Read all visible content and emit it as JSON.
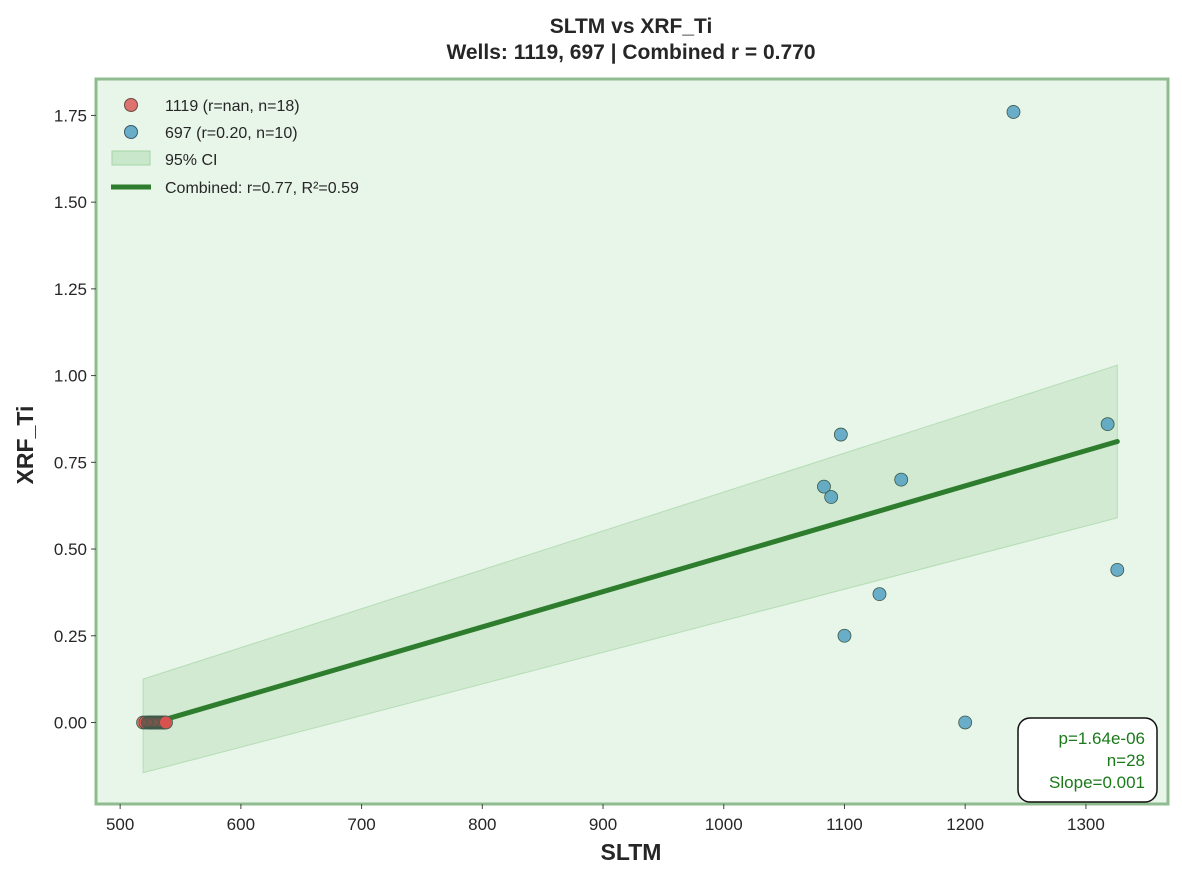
{
  "chart_data": {
    "type": "scatter",
    "title": "SLTM vs XRF_Ti",
    "subtitle": "Wells: 1119, 697 | Combined r = 0.770",
    "xlabel": "SLTM",
    "ylabel": "XRF_Ti",
    "xlim": [
      480,
      1368
    ],
    "ylim": [
      -0.235,
      1.855
    ],
    "xticks": [
      500,
      600,
      700,
      800,
      900,
      1000,
      1100,
      1200,
      1300
    ],
    "yticks": [
      0.0,
      0.25,
      0.5,
      0.75,
      1.0,
      1.25,
      1.5,
      1.75
    ],
    "xtick_labels": [
      "500",
      "600",
      "700",
      "800",
      "900",
      "1000",
      "1100",
      "1200",
      "1300"
    ],
    "ytick_labels": [
      "0.00",
      "0.25",
      "0.50",
      "0.75",
      "1.00",
      "1.25",
      "1.50",
      "1.75"
    ],
    "series": [
      {
        "name": "1119",
        "legend": "1119 (r=nan, n=18)",
        "color": "#d9534f",
        "x": [
          519,
          521,
          523,
          524,
          525,
          526,
          527,
          528,
          529,
          530,
          531,
          532,
          533,
          534,
          535,
          536,
          537,
          538
        ],
        "y": [
          0,
          0,
          0,
          0,
          0,
          0,
          0,
          0,
          0,
          0,
          0,
          0,
          0,
          0,
          0,
          0,
          0,
          0
        ]
      },
      {
        "name": "697",
        "legend": "697 (r=0.20, n=10)",
        "color": "#4a9bbf",
        "x": [
          1240,
          1097,
          1318,
          1083,
          1089,
          1147,
          1326,
          1129,
          1100,
          1200
        ],
        "y": [
          1.76,
          0.83,
          0.86,
          0.68,
          0.65,
          0.7,
          0.44,
          0.37,
          0.25,
          0.0
        ]
      }
    ],
    "regression": {
      "legend": "Combined: r=0.77, R²=0.59",
      "color": "#2e7d2e",
      "x": [
        519,
        1326
      ],
      "y": [
        -0.01,
        0.81
      ]
    },
    "ci": {
      "legend": "95% CI",
      "color": "#a5d6a7",
      "x": [
        519,
        1326
      ],
      "upper": [
        0.125,
        1.03
      ],
      "lower": [
        -0.145,
        0.59
      ]
    },
    "stats": {
      "p": "p=1.64e-06",
      "n": "n=28",
      "slope": "Slope=0.001"
    },
    "legend_position": "top-left",
    "stats_position": "bottom-right",
    "background_color": "#e8f5e9",
    "frame_color": "#8fbc8f"
  }
}
